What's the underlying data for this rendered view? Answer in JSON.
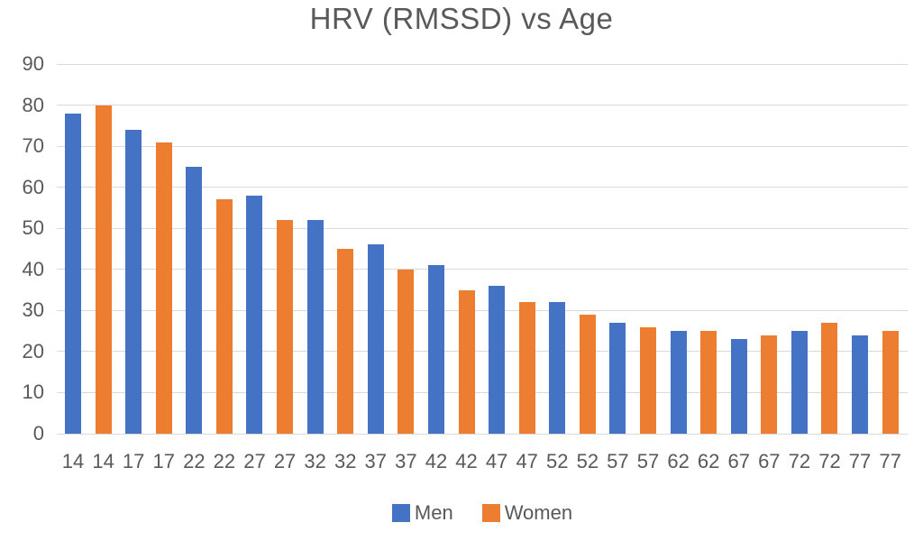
{
  "chart_data": {
    "type": "bar",
    "title": "HRV (RMSSD) vs Age",
    "xlabel": "",
    "ylabel": "",
    "categories": [
      "14",
      "17",
      "22",
      "27",
      "32",
      "37",
      "42",
      "47",
      "52",
      "57",
      "62",
      "67",
      "72",
      "77"
    ],
    "series": [
      {
        "name": "Men",
        "color": "#4472C4",
        "values": [
          78,
          74,
          65,
          58,
          52,
          46,
          41,
          36,
          32,
          27,
          25,
          23,
          25,
          24
        ]
      },
      {
        "name": "Women",
        "color": "#ED7D31",
        "values": [
          80,
          71,
          57,
          52,
          45,
          40,
          35,
          32,
          29,
          26,
          25,
          24,
          27,
          25
        ]
      }
    ],
    "y_ticks": [
      0,
      10,
      20,
      30,
      40,
      50,
      60,
      70,
      80,
      90
    ],
    "ylim": [
      0,
      90
    ],
    "grid": true,
    "legend_position": "bottom",
    "colors": {
      "title_text": "#595959",
      "axis_text": "#595959",
      "gridline": "#D9D9D9",
      "background": "#FFFFFF"
    }
  }
}
